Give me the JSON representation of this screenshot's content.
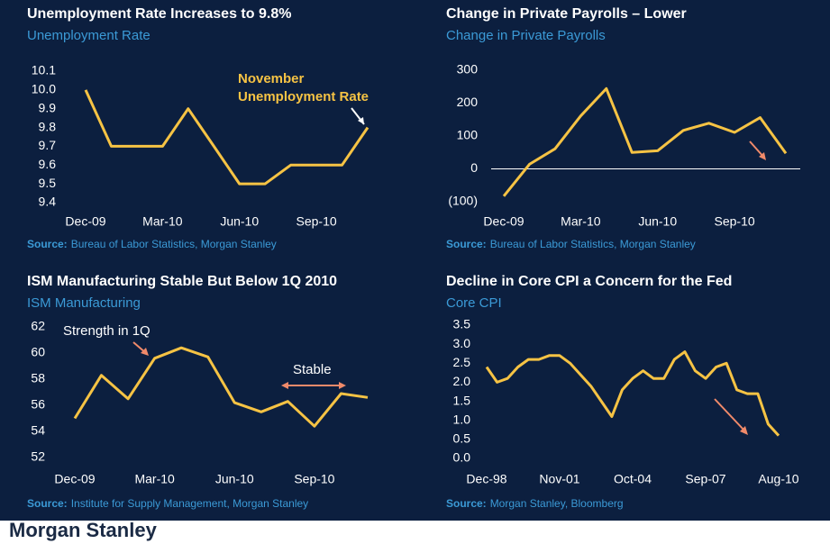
{
  "chart_data": [
    {
      "type": "line",
      "title": "Unemployment Rate Increases to 9.8%",
      "subtitle": "Unemployment Rate",
      "categories": [
        "Dec-09",
        null,
        null,
        "Mar-10",
        null,
        null,
        "Jun-10",
        null,
        null,
        "Sep-10",
        null,
        null
      ],
      "values": [
        10.0,
        9.7,
        9.7,
        9.7,
        9.9,
        9.7,
        9.5,
        9.5,
        9.6,
        9.6,
        9.6,
        9.8
      ],
      "color": "#f6c344",
      "ylim": [
        9.4,
        10.1
      ],
      "yticks": [
        9.4,
        9.5,
        9.6,
        9.7,
        9.8,
        9.9,
        {
          "value": 10,
          "label": "10.0"
        },
        10.1
      ],
      "annotations": [
        "November",
        "Unemployment Rate"
      ],
      "source_label": "Source:",
      "source": "Bureau of Labor Statistics, Morgan Stanley"
    },
    {
      "type": "line",
      "title": "Change in Private Payrolls – Lower",
      "subtitle": "Change in Private Payrolls",
      "categories": [
        "Dec-09",
        null,
        null,
        "Mar-10",
        null,
        null,
        "Jun-10",
        null,
        null,
        "Sep-10",
        null,
        null
      ],
      "values": [
        -83,
        14,
        61,
        161,
        244,
        50,
        55,
        117,
        139,
        111,
        156,
        47
      ],
      "color": "#f6c344",
      "ylim": [
        -100,
        300
      ],
      "yticks": [
        {
          "value": -100,
          "label": "(100)"
        },
        0,
        100,
        200,
        300
      ],
      "source_label": "Source:",
      "source": "Bureau of Labor Statistics, Morgan Stanley"
    },
    {
      "type": "line",
      "title": "ISM Manufacturing Stable But Below 1Q 2010",
      "subtitle": "ISM Manufacturing",
      "categories": [
        "Dec-09",
        null,
        null,
        "Mar-10",
        null,
        null,
        "Jun-10",
        null,
        null,
        "Sep-10",
        null,
        null
      ],
      "values": [
        55.0,
        58.3,
        56.5,
        59.6,
        60.4,
        59.7,
        56.2,
        55.5,
        56.3,
        54.4,
        56.9,
        56.6
      ],
      "color": "#f6c344",
      "ylim": [
        52,
        62
      ],
      "yticks": [
        52,
        54,
        56,
        58,
        60,
        62
      ],
      "annotations": [
        "Strength in 1Q",
        "Stable"
      ],
      "source_label": "Source:",
      "source": "Institute for Supply Management, Morgan Stanley"
    },
    {
      "type": "line",
      "title": "Decline in Core CPI a Concern for the Fed",
      "subtitle": "Core CPI",
      "categories": [
        "Dec-98",
        null,
        null,
        null,
        null,
        null,
        null,
        "Nov-01",
        null,
        null,
        null,
        null,
        null,
        null,
        "Oct-04",
        null,
        null,
        null,
        null,
        null,
        null,
        "Sep-07",
        null,
        null,
        null,
        null,
        null,
        null,
        "Aug-10"
      ],
      "values": [
        2.4,
        2.0,
        2.1,
        2.4,
        2.6,
        2.6,
        2.7,
        2.7,
        2.5,
        2.2,
        1.9,
        1.5,
        1.1,
        1.8,
        2.1,
        2.3,
        2.1,
        2.1,
        2.6,
        2.8,
        2.3,
        2.1,
        2.4,
        2.5,
        1.8,
        1.7,
        1.7,
        0.9,
        0.6
      ],
      "color": "#f6c344",
      "ylim": [
        0,
        3.5
      ],
      "yticks": [
        {
          "value": 0,
          "label": "0.0"
        },
        0.5,
        {
          "value": 1,
          "label": "1.0"
        },
        1.5,
        {
          "value": 2,
          "label": "2.0"
        },
        2.5,
        {
          "value": 3,
          "label": "3.0"
        },
        3.5
      ],
      "source_label": "Source:",
      "source": "Morgan Stanley, Bloomberg"
    }
  ],
  "footer": "Morgan Stanley"
}
